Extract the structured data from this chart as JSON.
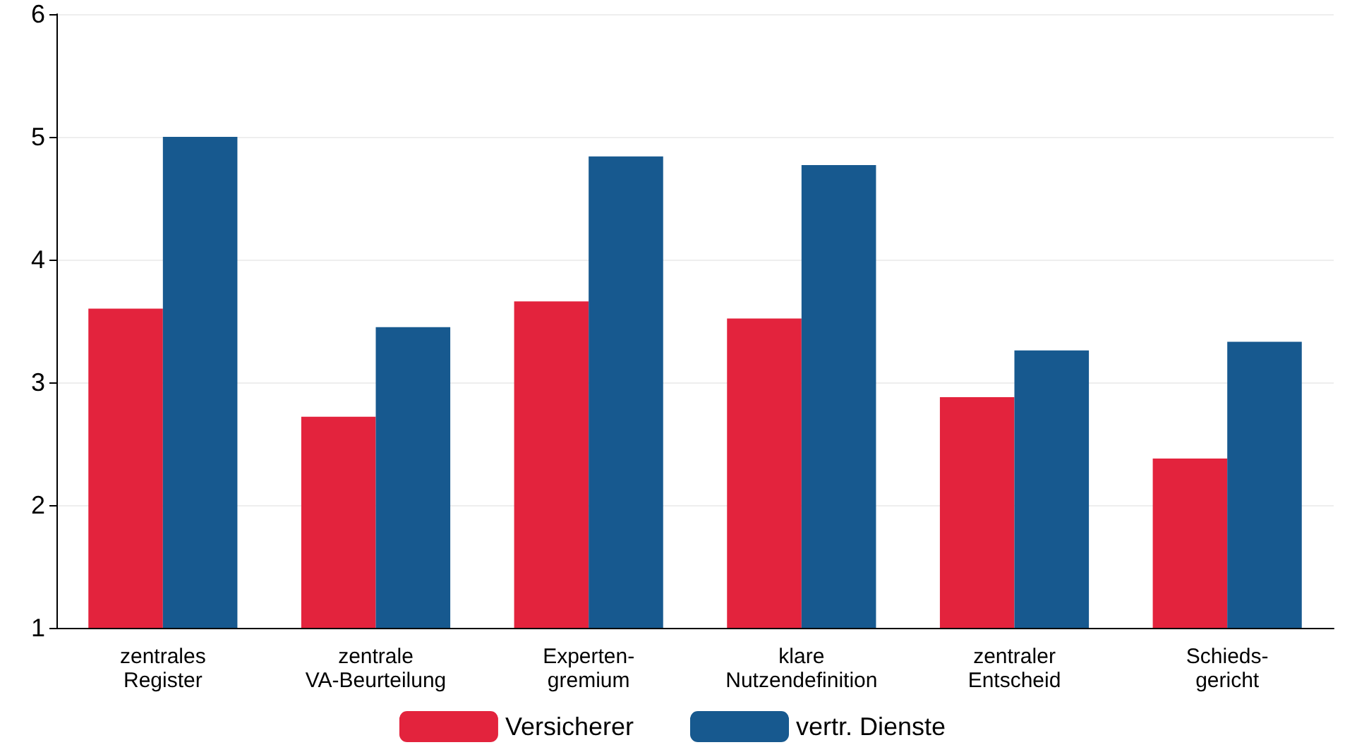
{
  "chart_data": {
    "type": "bar",
    "categories": [
      "zentrales\nRegister",
      "zentrale\nVA-Beurteilung",
      "Experten-\ngremium",
      "klare\nNutzendefinition",
      "zentraler\nEntscheid",
      "Schieds-\ngericht"
    ],
    "series": [
      {
        "name": "Versicherer",
        "color": "#e3233d",
        "values": [
          3.6,
          2.72,
          3.66,
          3.52,
          2.88,
          2.38
        ]
      },
      {
        "name": "vertr. Dienste",
        "color": "#17598f",
        "values": [
          5.0,
          3.45,
          4.84,
          4.77,
          3.26,
          3.33
        ]
      }
    ],
    "ylim": [
      1,
      6
    ],
    "yticks": [
      1,
      2,
      3,
      4,
      5,
      6
    ],
    "grid": "y",
    "legend": "bottom"
  }
}
